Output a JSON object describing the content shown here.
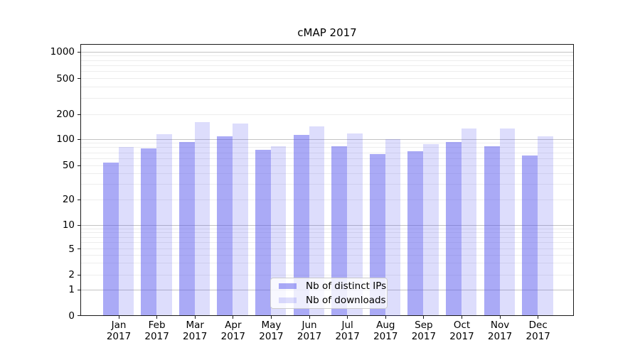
{
  "title": "cMAP 2017",
  "chart_data": {
    "type": "bar",
    "title": "cMAP 2017",
    "categories": [
      "Jan 2017",
      "Feb 2017",
      "Mar 2017",
      "Apr 2017",
      "May 2017",
      "Jun 2017",
      "Jul 2017",
      "Aug 2017",
      "Sep 2017",
      "Oct 2017",
      "Nov 2017",
      "Dec 2017"
    ],
    "x_axis": {
      "months": [
        "Jan",
        "Feb",
        "Mar",
        "Apr",
        "May",
        "Jun",
        "Jul",
        "Aug",
        "Sep",
        "Oct",
        "Nov",
        "Dec"
      ],
      "year": "2017"
    },
    "series": [
      {
        "name": "Nb of distinct IPs",
        "color": "rgba(85,85,238,0.5)",
        "values": [
          54,
          78,
          93,
          108,
          75,
          112,
          83,
          67,
          73,
          92,
          83,
          65
        ]
      },
      {
        "name": "Nb of downloads",
        "color": "rgba(85,85,238,0.2)",
        "values": [
          81,
          115,
          161,
          155,
          83,
          142,
          117,
          100,
          88,
          135,
          135,
          109
        ]
      }
    ],
    "yscale": "symlog",
    "ylim": [
      0,
      1250
    ],
    "ytick_values": [
      0,
      1,
      2,
      5,
      10,
      20,
      50,
      100,
      200,
      500,
      1000
    ],
    "ytick_labels": [
      "0",
      "1",
      "2",
      "5",
      "10",
      "20",
      "50",
      "100",
      "200",
      "500",
      "1000"
    ],
    "grid": true,
    "grid_major_at": [
      1,
      10,
      100,
      1000
    ],
    "legend_position": "lower center",
    "xlabel": "",
    "ylabel": ""
  },
  "colors": {
    "bar_distinct_ips": "rgba(85,85,238,0.5)",
    "bar_downloads": "rgba(85,85,238,0.2)",
    "grid_major": "#c3c3c3",
    "grid_minor": "#ededed",
    "axis_spine": "#1a1a1a",
    "legend_border": "#cccccc",
    "background": "#ffffff"
  }
}
